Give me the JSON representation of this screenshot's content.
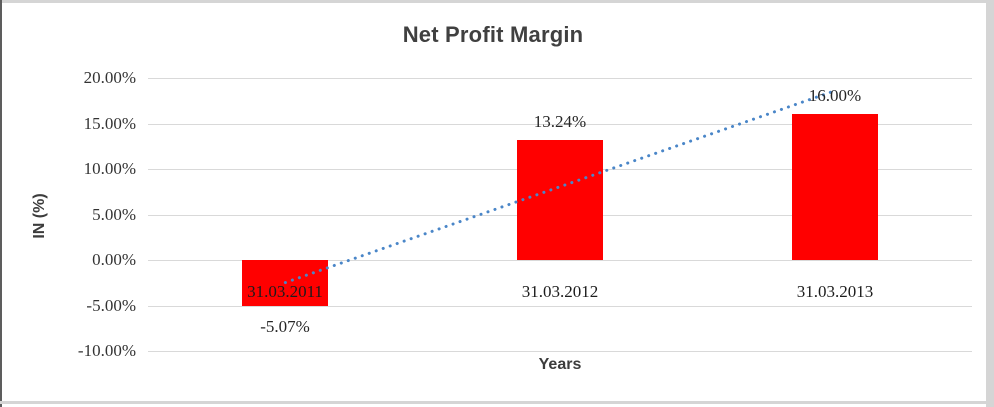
{
  "chart_data": {
    "type": "bar",
    "title": "Net Profit Margin",
    "categories": [
      "31.03.2011",
      "31.03.2012",
      "31.03.2013"
    ],
    "values": [
      -5.07,
      13.24,
      16.0
    ],
    "data_labels": [
      "-5.07%",
      "13.24%",
      "16.00%"
    ],
    "xlabel": "Years",
    "ylabel": "IN (%)",
    "ylim": [
      -10,
      20
    ],
    "ytick_step": 5,
    "yticks": [
      "20.00%",
      "15.00%",
      "10.00%",
      "5.00%",
      "0.00%",
      "-5.00%",
      "-10.00%"
    ],
    "ytick_values": [
      20,
      15,
      10,
      5,
      0,
      -5,
      -10
    ],
    "grid": true,
    "legend": "none",
    "colors": {
      "bar": "#FF0000",
      "trendline": "#4A86C8",
      "gridline": "#D9D9D9",
      "title_text": "#404040",
      "tick_text": "#333333",
      "label_text": "#262626"
    },
    "trendline": {
      "type": "linear",
      "style": "dotted",
      "start_value": -2.48,
      "end_value": 18.59
    }
  }
}
